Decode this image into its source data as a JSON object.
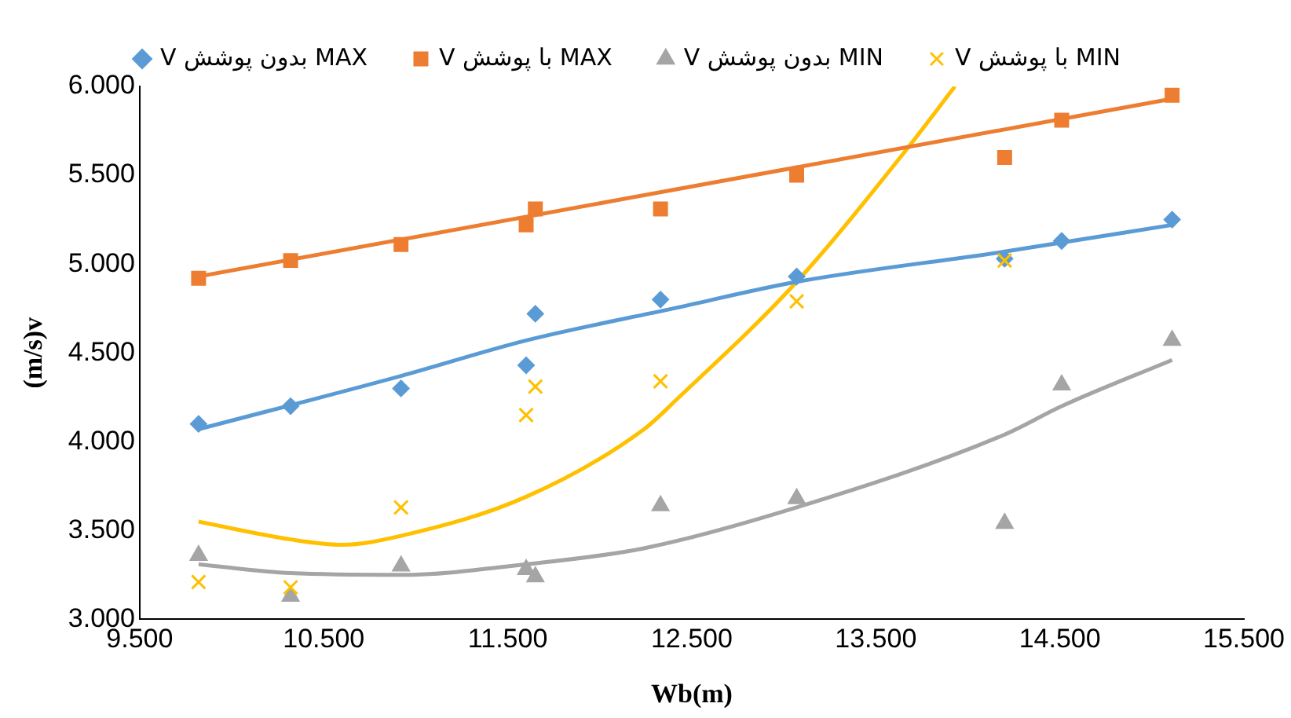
{
  "chart_data": {
    "type": "scatter",
    "xlabel": "Wb(m)",
    "ylabel": "(m/s)v",
    "legend": "top",
    "grid": false,
    "x": [
      9.82,
      10.32,
      10.92,
      11.6,
      11.65,
      12.33,
      13.07,
      14.2,
      14.51,
      15.11
    ],
    "xlim": [
      9.5,
      15.5
    ],
    "xticks": [
      {
        "value": 9.5,
        "label": "9.500"
      },
      {
        "value": 10.5,
        "label": "10.500"
      },
      {
        "value": 11.5,
        "label": "11.500"
      },
      {
        "value": 12.5,
        "label": "12.500"
      },
      {
        "value": 13.5,
        "label": "13.500"
      },
      {
        "value": 14.5,
        "label": "14.500"
      },
      {
        "value": 15.5,
        "label": "15.500"
      }
    ],
    "ylim": [
      3,
      6
    ],
    "yticks": [
      {
        "value": 3,
        "label": "3.000"
      },
      {
        "value": 3.5,
        "label": "3.500"
      },
      {
        "value": 4,
        "label": "4.000"
      },
      {
        "value": 4.5,
        "label": "4.500"
      },
      {
        "value": 5,
        "label": "5.000"
      },
      {
        "value": 5.5,
        "label": "5.500"
      },
      {
        "value": 6,
        "label": "6.000"
      }
    ],
    "series": [
      {
        "name": "V بدون پوشش MAX",
        "marker": "diamond",
        "color": "#5b9bd5",
        "values": [
          4.1,
          4.2,
          4.3,
          4.43,
          4.72,
          4.8,
          4.93,
          5.03,
          5.13,
          5.25
        ]
      },
      {
        "name": "V با پوشش MAX",
        "marker": "square",
        "color": "#ed7d31",
        "values": [
          4.92,
          5.02,
          5.11,
          5.22,
          5.31,
          5.31,
          5.5,
          5.6,
          5.81,
          5.95
        ]
      },
      {
        "name": "V بدون پوشش MIN",
        "marker": "triangle",
        "color": "#a5a5a5",
        "values": [
          3.36,
          3.13,
          3.3,
          3.28,
          3.24,
          3.64,
          3.68,
          3.54,
          4.32,
          4.57
        ]
      },
      {
        "name": "V با پوشش MIN",
        "marker": "cross",
        "color": "#ffc000",
        "values": [
          3.21,
          3.18,
          3.63,
          4.15,
          4.31,
          4.34,
          4.79,
          5.02,
          null,
          null
        ]
      },
      {
        "type": "line",
        "marker": "none",
        "color": "#5b9bd5",
        "x": [
          9.82,
          10.92,
          11.6,
          12.4,
          13.07,
          14.2,
          15.11
        ],
        "values": [
          4.07,
          4.37,
          4.57,
          4.75,
          4.9,
          5.07,
          5.22
        ]
      },
      {
        "type": "line",
        "marker": "none",
        "color": "#ed7d31",
        "x": [
          9.82,
          15.11
        ],
        "values": [
          4.93,
          5.93
        ]
      },
      {
        "type": "line",
        "marker": "none",
        "color": "#a5a5a5",
        "x": [
          9.82,
          10.32,
          10.92,
          11.6,
          12.24,
          13.07,
          14.2,
          14.51,
          15.11
        ],
        "values": [
          3.31,
          3.26,
          3.25,
          3.31,
          3.4,
          3.63,
          4.04,
          4.2,
          4.46
        ]
      },
      {
        "type": "line",
        "marker": "none",
        "color": "#ffc000",
        "x": [
          9.82,
          10.32,
          10.6,
          10.92,
          11.6,
          12.24,
          12.42,
          13.07,
          13.64,
          13.93
        ],
        "values": [
          3.55,
          3.45,
          3.42,
          3.47,
          3.69,
          4.07,
          4.24,
          4.9,
          5.61,
          6.0
        ]
      }
    ]
  }
}
